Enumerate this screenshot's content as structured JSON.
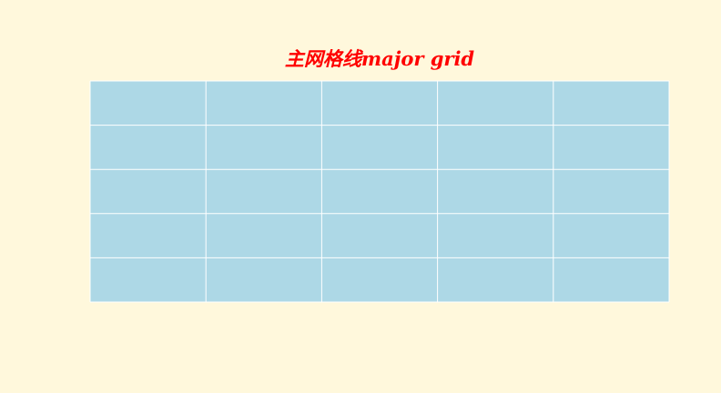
{
  "chart_data": {
    "type": "grid",
    "title": "主网格线major grid",
    "xlabel": "",
    "ylabel": "",
    "xlim": [
      0,
      5
    ],
    "ylim": [
      0,
      5
    ],
    "xticks": [
      0,
      1,
      2,
      3,
      4,
      5
    ],
    "yticks": [
      0,
      1,
      2,
      3,
      4,
      5
    ],
    "tick_labels_visible": false,
    "grid": true,
    "grid_which": "major",
    "grid_color": "#ffffff",
    "axes_facecolor": "#add8e6",
    "figure_facecolor": "#fff8dc",
    "title_color": "#ff0000",
    "spines_visible": false
  }
}
